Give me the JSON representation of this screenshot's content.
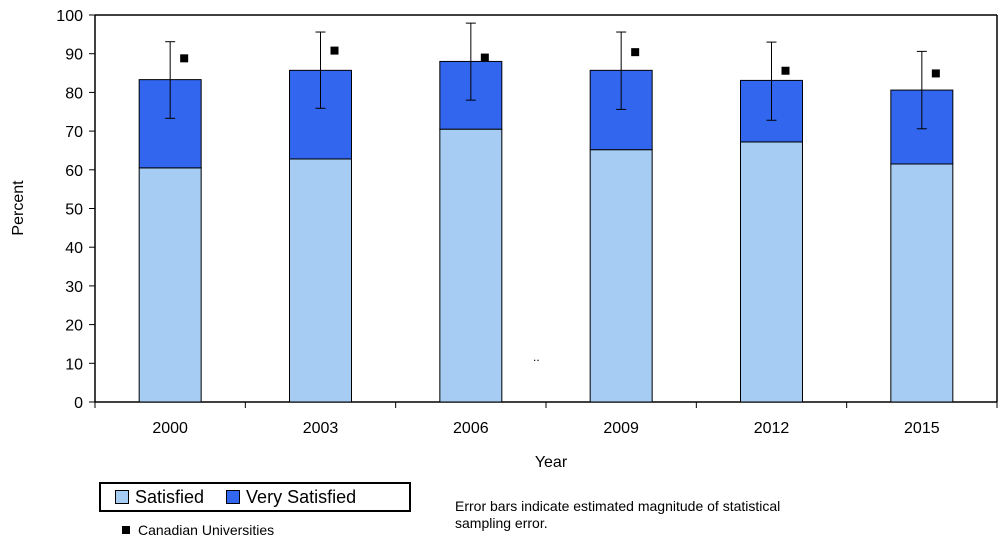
{
  "chart_data": {
    "type": "bar",
    "stacked": true,
    "categories": [
      "2000",
      "2003",
      "2006",
      "2009",
      "2012",
      "2015"
    ],
    "series": [
      {
        "name": "Satisfied",
        "color": "#a6ccf4",
        "values": [
          60.5,
          62.8,
          70.5,
          65.2,
          67.2,
          61.5
        ]
      },
      {
        "name": "Very Satisfied",
        "color": "#3366ee",
        "values": [
          22.8,
          22.9,
          17.5,
          20.5,
          15.9,
          19.1
        ]
      }
    ],
    "error_bars": {
      "low": [
        73.3,
        75.9,
        78.0,
        75.6,
        72.8,
        70.6
      ],
      "high": [
        93.1,
        95.6,
        97.9,
        95.6,
        93.0,
        90.6
      ]
    },
    "markers": {
      "name": "Canadian Universities",
      "values": [
        88.8,
        90.8,
        89.0,
        90.4,
        85.6,
        84.9
      ]
    },
    "xlabel": "Year",
    "ylabel": "Percent",
    "ylim": [
      0,
      100
    ],
    "yticks": [
      0,
      10,
      20,
      30,
      40,
      50,
      60,
      70,
      80,
      90,
      100
    ],
    "grid": false,
    "legend_position": "bottom-left"
  },
  "legend": {
    "satisfied_label": "Satisfied",
    "very_satisfied_label": "Very Satisfied",
    "marker_label": "Canadian Universities"
  },
  "note": "Error bars indicate estimated magnitude of statistical sampling error.",
  "stray_text": ".."
}
